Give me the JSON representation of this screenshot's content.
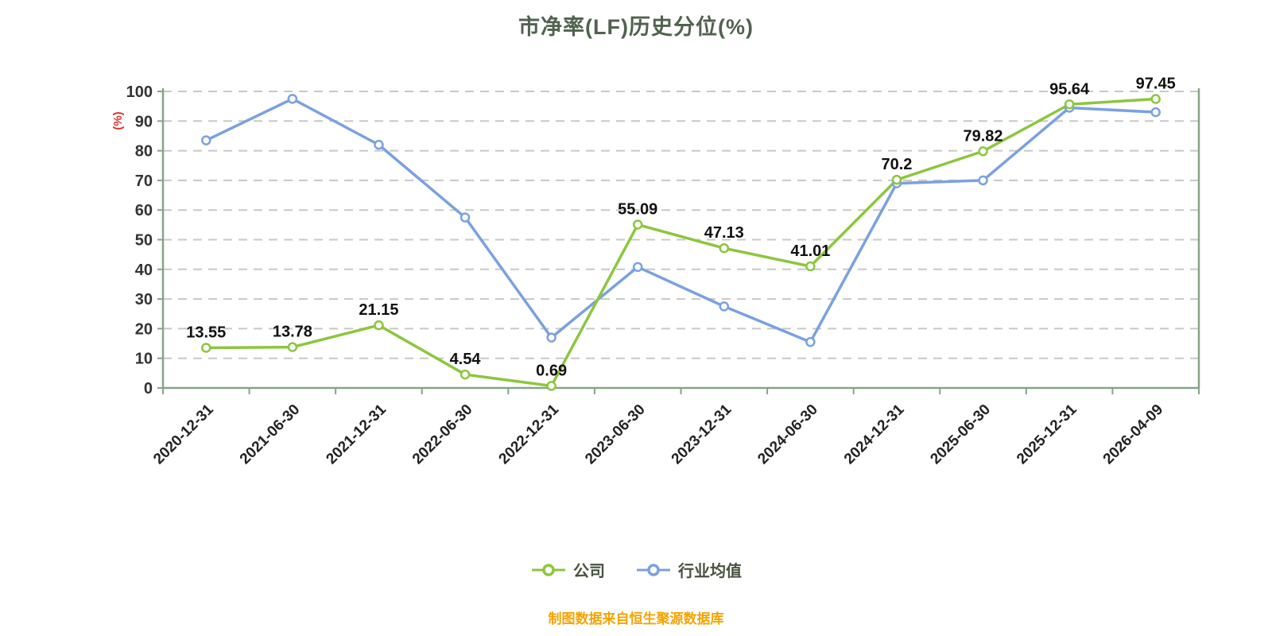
{
  "title": "市净率(LF)历史分位(%)",
  "y_axis_unit": "(%)",
  "source_note": "制图数据来自恒生聚源数据库",
  "colors": {
    "company_line": "#8cc63e",
    "industry_line": "#7aa1e0",
    "axis": "#87a487",
    "grid": "#c8c8c8",
    "title": "#51624f",
    "y_unit": "#d9342b",
    "source": "#f5a300"
  },
  "legend": [
    {
      "id": "company",
      "label": "公司",
      "color": "#8cc63e"
    },
    {
      "id": "industry",
      "label": "行业均值",
      "color": "#7aa1e0"
    }
  ],
  "chart_data": {
    "type": "line",
    "title": "市净率(LF)历史分位(%)",
    "xlabel": "",
    "ylabel": "(%)",
    "ylim": [
      0,
      100
    ],
    "y_ticks": [
      0,
      10,
      20,
      30,
      40,
      50,
      60,
      70,
      80,
      90,
      100
    ],
    "grid": "horizontal dashed",
    "legend_position": "bottom",
    "categories": [
      "2020-12-31",
      "2021-06-30",
      "2021-12-31",
      "2022-06-30",
      "2022-12-31",
      "2023-06-30",
      "2023-12-31",
      "2024-06-30",
      "2024-12-31",
      "2025-06-30",
      "2025-12-31",
      "2026-04-09"
    ],
    "series": [
      {
        "name": "公司",
        "color": "#8cc63e",
        "labeled": true,
        "values": [
          13.55,
          13.78,
          21.15,
          4.54,
          0.69,
          55.09,
          47.13,
          41.01,
          70.2,
          79.82,
          95.64,
          97.45
        ]
      },
      {
        "name": "行业均值",
        "color": "#7aa1e0",
        "labeled": false,
        "values": [
          83.5,
          97.5,
          82,
          57.5,
          17,
          40.8,
          27.5,
          15.5,
          69,
          70,
          94.5,
          93
        ]
      }
    ]
  }
}
